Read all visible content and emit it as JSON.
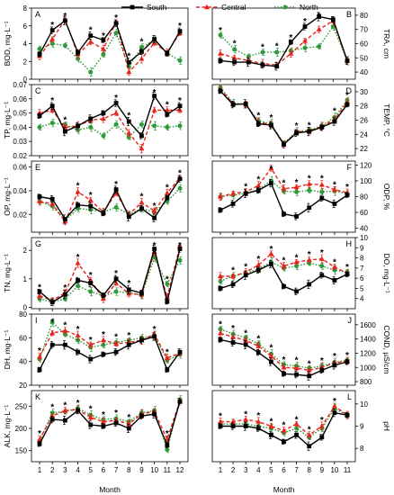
{
  "legend": [
    {
      "name": "South",
      "color": "#000000",
      "marker": "square",
      "dash": "solid"
    },
    {
      "name": "Central",
      "color": "#e8231c",
      "marker": "triangle",
      "dash": "dashed"
    },
    {
      "name": "North",
      "color": "#2e9a3a",
      "marker": "circle",
      "dash": "dotted"
    }
  ],
  "chart_data": [
    {
      "letter": "A",
      "type": "line",
      "side": "left",
      "ylabel": "BOD, mg·L⁻¹",
      "ylim": [
        0,
        8
      ],
      "yticks": [
        0,
        2,
        4,
        6,
        8
      ],
      "x": [
        1,
        2,
        3,
        4,
        5,
        6,
        7,
        8,
        9,
        10,
        11,
        12
      ],
      "series": [
        {
          "name": "South",
          "values": [
            2.8,
            5.5,
            6.6,
            3.0,
            4.9,
            4.4,
            6.3,
            1.9,
            3.1,
            4.5,
            2.9,
            5.4
          ]
        },
        {
          "name": "Central",
          "values": [
            2.6,
            4.5,
            6.7,
            2.8,
            4.2,
            3.4,
            6.4,
            0.8,
            2.3,
            4.1,
            3.0,
            5.2
          ]
        },
        {
          "name": "North",
          "values": [
            3.4,
            4.0,
            3.8,
            2.3,
            0.8,
            2.8,
            5.2,
            1.4,
            3.6,
            4.4,
            2.9,
            2.1
          ]
        }
      ],
      "stars": [
        2,
        3,
        5,
        6,
        7,
        8,
        9,
        12
      ]
    },
    {
      "letter": "B",
      "type": "line",
      "side": "right",
      "ylabel": "TRA, cm",
      "ylim": [
        35,
        85
      ],
      "yticks": [
        40,
        50,
        60,
        70,
        80
      ],
      "x": [
        1,
        2,
        3,
        4,
        5,
        6,
        7,
        8,
        9,
        10
      ],
      "series": [
        {
          "name": "South",
          "values": [
            48,
            47,
            47,
            45,
            44,
            61,
            72,
            79,
            77,
            48
          ]
        },
        {
          "name": "Central",
          "values": [
            53,
            50,
            48,
            46,
            45,
            53,
            62,
            70,
            76,
            48
          ]
        },
        {
          "name": "North",
          "values": [
            66,
            56,
            51,
            54,
            54,
            55,
            57,
            58,
            72,
            48
          ]
        }
      ],
      "stars": [
        1,
        2,
        4,
        5,
        6,
        7,
        8
      ]
    },
    {
      "letter": "C",
      "type": "line",
      "side": "left",
      "ylabel": "TP, mg·L⁻¹",
      "ylim": [
        0.02,
        0.07
      ],
      "yticks": [
        0.02,
        0.03,
        0.04,
        0.05,
        0.06,
        0.07
      ],
      "x": [
        1,
        2,
        3,
        4,
        5,
        6,
        7,
        8,
        9,
        10,
        11,
        12
      ],
      "series": [
        {
          "name": "South",
          "values": [
            0.048,
            0.055,
            0.037,
            0.041,
            0.046,
            0.05,
            0.057,
            0.044,
            0.034,
            0.062,
            0.049,
            0.055
          ]
        },
        {
          "name": "Central",
          "values": [
            0.05,
            0.052,
            0.04,
            0.041,
            0.045,
            0.046,
            0.05,
            0.036,
            0.025,
            0.052,
            0.052,
            0.052
          ]
        },
        {
          "name": "North",
          "values": [
            0.04,
            0.043,
            0.042,
            0.038,
            0.04,
            0.034,
            0.042,
            0.033,
            0.042,
            0.041,
            0.04,
            0.041
          ]
        }
      ],
      "stars": [
        2,
        3,
        7,
        8,
        10,
        11,
        12
      ]
    },
    {
      "letter": "D",
      "type": "line",
      "side": "right",
      "ylabel": "TEMP, °C",
      "ylim": [
        21,
        31
      ],
      "yticks": [
        22,
        24,
        26,
        28,
        30
      ],
      "x": [
        1,
        2,
        3,
        4,
        5,
        6,
        7,
        8,
        9,
        10,
        11
      ],
      "series": [
        {
          "name": "South",
          "values": [
            30.1,
            28.2,
            28.3,
            25.5,
            25.3,
            22.6,
            24.2,
            24.4,
            25.0,
            25.8,
            28.2
          ]
        },
        {
          "name": "Central",
          "values": [
            30.4,
            28.3,
            28.2,
            25.7,
            25.4,
            22.6,
            24.3,
            24.5,
            25.1,
            26.1,
            28.5
          ]
        },
        {
          "name": "North",
          "values": [
            30.6,
            28.4,
            28.2,
            25.9,
            25.5,
            22.7,
            24.4,
            24.6,
            25.2,
            26.4,
            28.8
          ]
        }
      ],
      "stars": [
        1,
        4,
        5,
        7,
        8,
        10,
        11
      ]
    },
    {
      "letter": "E",
      "type": "line",
      "side": "left",
      "ylabel": "OP, mg·L⁻¹",
      "ylim": [
        0.005,
        0.065
      ],
      "yticks": [
        0.0,
        0.02,
        0.04,
        0.06
      ],
      "x": [
        1,
        2,
        3,
        4,
        5,
        6,
        7,
        8,
        9,
        10,
        11,
        12
      ],
      "series": [
        {
          "name": "South",
          "values": [
            0.035,
            0.033,
            0.016,
            0.028,
            0.027,
            0.021,
            0.041,
            0.018,
            0.025,
            0.017,
            0.034,
            0.05
          ]
        },
        {
          "name": "Central",
          "values": [
            0.031,
            0.029,
            0.014,
            0.039,
            0.032,
            0.022,
            0.038,
            0.02,
            0.03,
            0.023,
            0.038,
            0.051
          ]
        },
        {
          "name": "North",
          "values": [
            0.031,
            0.027,
            0.015,
            0.025,
            0.024,
            0.022,
            0.026,
            0.02,
            0.025,
            0.022,
            0.031,
            0.042
          ]
        }
      ],
      "stars": [
        4,
        5,
        7,
        9,
        10,
        11,
        12
      ]
    },
    {
      "letter": "F",
      "type": "line",
      "side": "right",
      "ylabel": "ODP, %",
      "ylim": [
        35,
        125
      ],
      "yticks": [
        40,
        60,
        80,
        100,
        120
      ],
      "x": [
        1,
        2,
        3,
        4,
        5,
        6,
        7,
        8,
        9,
        10,
        11
      ],
      "series": [
        {
          "name": "South",
          "values": [
            63,
            71,
            84,
            88,
            97,
            58,
            55,
            66,
            78,
            71,
            82
          ]
        },
        {
          "name": "Central",
          "values": [
            80,
            84,
            86,
            94,
            116,
            90,
            92,
            96,
            95,
            89,
            85
          ]
        },
        {
          "name": "North",
          "values": [
            80,
            82,
            84,
            89,
            100,
            87,
            86,
            88,
            86,
            87,
            84
          ]
        }
      ],
      "stars": [
        3,
        4,
        5,
        6,
        7,
        8,
        9,
        10,
        11
      ]
    },
    {
      "letter": "G",
      "type": "line",
      "side": "left",
      "ylabel": "TN, mg·L⁻¹",
      "ylim": [
        -0.05,
        2.45
      ],
      "yticks": [
        0,
        1,
        2
      ],
      "x": [
        1,
        2,
        3,
        4,
        5,
        6,
        7,
        8,
        9,
        10,
        11,
        12
      ],
      "series": [
        {
          "name": "South",
          "values": [
            0.55,
            0.18,
            0.45,
            0.95,
            0.85,
            0.42,
            1.0,
            0.62,
            0.5,
            2.05,
            0.2,
            2.05
          ]
        },
        {
          "name": "Central",
          "values": [
            0.4,
            0.25,
            0.5,
            1.55,
            0.95,
            0.3,
            0.85,
            0.48,
            0.45,
            1.95,
            0.35,
            2.15
          ]
        },
        {
          "name": "North",
          "values": [
            0.3,
            0.18,
            0.3,
            0.75,
            0.55,
            0.4,
            0.55,
            0.52,
            0.42,
            1.75,
            0.82,
            1.65
          ]
        }
      ],
      "stars": [
        1,
        3,
        4,
        5,
        7,
        8,
        10,
        11,
        12
      ]
    },
    {
      "letter": "H",
      "type": "line",
      "side": "right",
      "ylabel": "DO, mg·L⁻¹",
      "ylim": [
        3,
        10
      ],
      "yticks": [
        4,
        5,
        6,
        7,
        8,
        9,
        10
      ],
      "x": [
        1,
        2,
        3,
        4,
        5,
        6,
        7,
        8,
        9,
        10,
        11
      ],
      "series": [
        {
          "name": "South",
          "values": [
            5.0,
            5.4,
            6.3,
            6.8,
            7.4,
            5.2,
            4.7,
            5.4,
            6.3,
            5.8,
            6.4
          ]
        },
        {
          "name": "Central",
          "values": [
            6.2,
            6.2,
            6.6,
            7.3,
            8.4,
            7.2,
            7.6,
            7.8,
            7.9,
            7.1,
            6.5
          ]
        },
        {
          "name": "North",
          "values": [
            5.7,
            6.2,
            6.5,
            6.9,
            7.6,
            7.0,
            7.2,
            7.5,
            7.2,
            6.8,
            6.6
          ]
        }
      ],
      "stars": [
        2,
        3,
        4,
        5,
        6,
        7,
        8,
        9,
        10,
        11
      ]
    },
    {
      "letter": "I",
      "type": "line",
      "side": "left",
      "ylabel": "DH, mg·L⁻¹",
      "ylim": [
        20,
        80
      ],
      "yticks": [
        20,
        40,
        60,
        80
      ],
      "x": [
        1,
        2,
        3,
        4,
        5,
        6,
        7,
        8,
        9,
        10,
        11,
        12
      ],
      "series": [
        {
          "name": "South",
          "values": [
            33,
            54,
            54,
            48,
            42,
            46,
            48,
            54,
            58,
            61,
            33,
            48
          ]
        },
        {
          "name": "Central",
          "values": [
            44,
            64,
            66,
            62,
            54,
            58,
            55,
            56,
            58,
            63,
            43,
            47
          ]
        },
        {
          "name": "North",
          "values": [
            42,
            73,
            63,
            58,
            52,
            54,
            56,
            58,
            60,
            62,
            41,
            46
          ]
        }
      ],
      "stars": [
        1,
        2,
        3,
        4,
        5,
        6,
        7,
        8,
        10,
        11
      ]
    },
    {
      "letter": "J",
      "type": "line",
      "side": "right",
      "ylabel": "COND, µS/cm",
      "ylim": [
        750,
        1750
      ],
      "yticks": [
        800,
        1000,
        1200,
        1400,
        1600
      ],
      "x": [
        1,
        2,
        3,
        4,
        5,
        6,
        7,
        8,
        9,
        10,
        11
      ],
      "series": [
        {
          "name": "South",
          "values": [
            1390,
            1350,
            1320,
            1210,
            1080,
            910,
            900,
            880,
            960,
            1030,
            1080
          ]
        },
        {
          "name": "Central",
          "values": [
            1480,
            1430,
            1380,
            1300,
            1160,
            1000,
            990,
            960,
            1000,
            1060,
            1090
          ]
        },
        {
          "name": "North",
          "values": [
            1540,
            1470,
            1420,
            1330,
            1190,
            1040,
            1020,
            990,
            1020,
            1070,
            1100
          ]
        }
      ],
      "stars": [
        1,
        2,
        3,
        4,
        5,
        6,
        7,
        8,
        9,
        10,
        11
      ]
    },
    {
      "letter": "K",
      "type": "line",
      "side": "left",
      "ylabel": "ALK, mg·L⁻¹",
      "ylim": [
        125,
        285
      ],
      "yticks": [
        150,
        200,
        250
      ],
      "x": [
        1,
        2,
        3,
        4,
        5,
        6,
        7,
        8,
        9,
        10,
        11,
        12
      ],
      "series": [
        {
          "name": "South",
          "values": [
            165,
            220,
            218,
            240,
            208,
            205,
            212,
            200,
            228,
            232,
            162,
            260
          ]
        },
        {
          "name": "Central",
          "values": [
            175,
            228,
            240,
            242,
            225,
            215,
            218,
            210,
            232,
            238,
            175,
            262
          ]
        },
        {
          "name": "North",
          "values": [
            172,
            235,
            238,
            245,
            230,
            220,
            222,
            215,
            235,
            240,
            152,
            265
          ]
        }
      ],
      "stars": [
        1,
        2,
        3,
        4,
        5,
        6,
        7,
        8,
        11
      ]
    },
    {
      "letter": "L",
      "type": "line",
      "side": "right",
      "ylabel": "pH",
      "ylim": [
        7.4,
        10.6
      ],
      "yticks": [
        8,
        9,
        10
      ],
      "x": [
        1,
        2,
        3,
        4,
        5,
        6,
        7,
        8,
        9,
        10,
        11
      ],
      "series": [
        {
          "name": "South",
          "values": [
            9.0,
            9.0,
            9.0,
            8.9,
            8.6,
            8.3,
            8.6,
            8.1,
            8.5,
            9.6,
            9.5
          ]
        },
        {
          "name": "Central",
          "values": [
            9.2,
            9.2,
            9.3,
            9.2,
            9.0,
            8.8,
            9.1,
            8.6,
            9.0,
            9.9,
            9.5
          ]
        },
        {
          "name": "North",
          "values": [
            9.1,
            9.1,
            9.1,
            9.0,
            8.9,
            8.7,
            8.9,
            8.5,
            8.9,
            9.8,
            9.5
          ]
        }
      ],
      "stars": [
        1,
        3,
        4,
        5,
        6,
        7,
        8,
        9,
        10
      ]
    }
  ],
  "x_axis_label": "Month"
}
